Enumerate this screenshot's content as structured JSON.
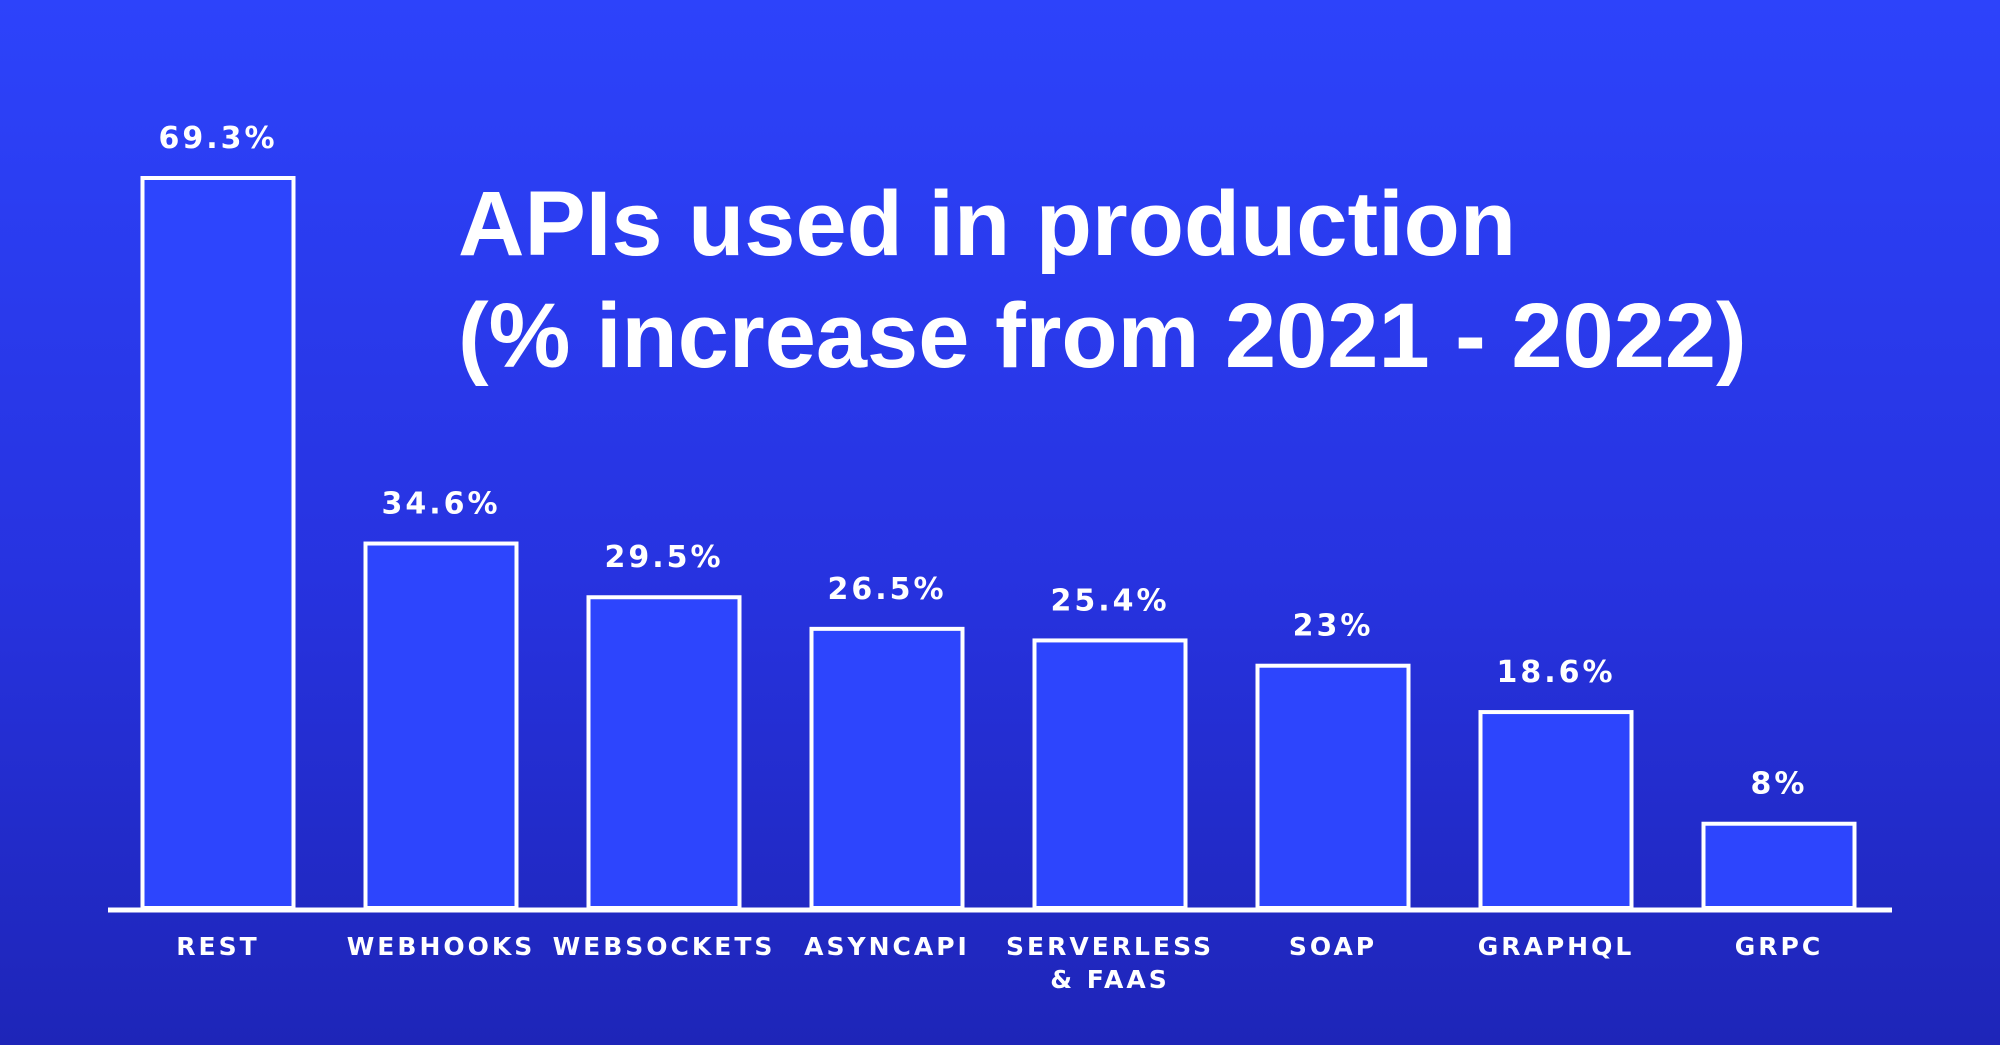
{
  "chart_data": {
    "type": "bar",
    "title_lines": [
      "APIs used in production",
      "(% increase from 2021 - 2022)"
    ],
    "categories": [
      [
        "REST"
      ],
      [
        "WEBHOOKS"
      ],
      [
        "WEBSOCKETS"
      ],
      [
        "ASYNCAPI"
      ],
      [
        "SERVERLESS",
        "& FAAS"
      ],
      [
        "SOAP"
      ],
      [
        "GRAPHQL"
      ],
      [
        "GRPC"
      ]
    ],
    "values": [
      69.3,
      34.6,
      29.5,
      26.5,
      25.4,
      23,
      18.6,
      8
    ],
    "value_labels": [
      "69.3%",
      "34.6%",
      "29.5%",
      "26.5%",
      "25.4%",
      "23%",
      "18.6%",
      "8%"
    ],
    "ylim": [
      0,
      69.3
    ],
    "grid": false,
    "legend": "none",
    "colors": {
      "background_top": "#2d43fb",
      "background_bottom": "#1e25b8",
      "bar_fill": "#2d45fd",
      "bar_stroke": "#ffffff",
      "text": "#ffffff"
    }
  }
}
